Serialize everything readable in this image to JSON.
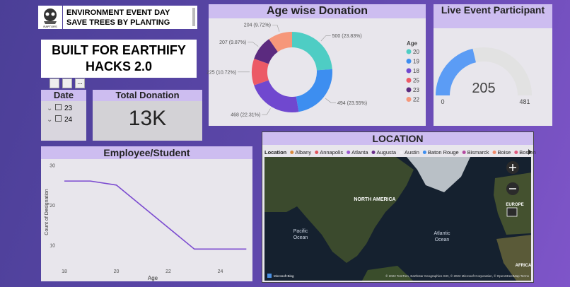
{
  "header": {
    "logo_text": "RAPTORS",
    "lines": [
      "ENVIRONMENT EVENT DAY",
      "SAVE TREES BY PLANTING"
    ]
  },
  "banner": "BUILT FOR EARTHIFY HACKS 2.0",
  "date_slicer": {
    "title": "Date",
    "items": [
      "23",
      "24"
    ]
  },
  "card": {
    "title": "Total Donation",
    "value": "13K"
  },
  "chart_data": [
    {
      "type": "donut",
      "title": "Age wise Donation",
      "legend_title": "Age",
      "categories": [
        "20",
        "19",
        "18",
        "25",
        "23",
        "22"
      ],
      "values": [
        500,
        494,
        468,
        225,
        207,
        204
      ],
      "value_labels": [
        "500 (23.83%)",
        "494 (23.55%)",
        "468 (22.31%)",
        "225 (10.72%)",
        "207 (9.87%)",
        "204 (9.72%)"
      ],
      "colors": [
        "#4ecdc4",
        "#3d8ef0",
        "#7048cf",
        "#ec5a66",
        "#5b2a7f",
        "#f6977a"
      ]
    },
    {
      "type": "gauge",
      "title": "Live Event Participant",
      "value": 205,
      "ylim": [
        0,
        481
      ],
      "yticks": [
        0,
        481
      ],
      "color": "#5b9cf5"
    },
    {
      "type": "line",
      "title": "Employee/Student",
      "x_label": "Age",
      "y_label": "Count of Designation",
      "x": [
        18,
        19,
        20,
        23,
        25
      ],
      "values": [
        26,
        26,
        25,
        9,
        9
      ],
      "xlim": [
        17.7,
        25.1
      ],
      "ylim": [
        5,
        31.5
      ],
      "xticks": [
        18,
        20,
        22,
        24
      ],
      "yticks": [
        10,
        20,
        30
      ],
      "color": "#7b4bd0"
    }
  ],
  "map": {
    "title": "LOCATION",
    "legend_title": "Location",
    "legend": [
      {
        "name": "Albany",
        "color": "#d98a3d"
      },
      {
        "name": "Annapolis",
        "color": "#e0565e"
      },
      {
        "name": "Atlanta",
        "color": "#9b59d0"
      },
      {
        "name": "Augusta",
        "color": "#6a2f8a"
      },
      {
        "name": "Austin",
        "color": "#f0eef4"
      },
      {
        "name": "Baton Rouge",
        "color": "#3d8ef0"
      },
      {
        "name": "Bismarck",
        "color": "#b44aa0"
      },
      {
        "name": "Boise",
        "color": "#f08a6a"
      },
      {
        "name": "Boston",
        "color": "#e05a80"
      }
    ],
    "labels": [
      "NORTH AMERICA",
      "Pacific",
      "Ocean",
      "Atlantic",
      "Ocean",
      "EUROPE",
      "AFRICA",
      "Microsoft Bing",
      "© 2022 TomTom, Earthstar Geographics SIO, © 2022 Microsoft Corporation, © OpenStreetMap  Terms"
    ]
  }
}
